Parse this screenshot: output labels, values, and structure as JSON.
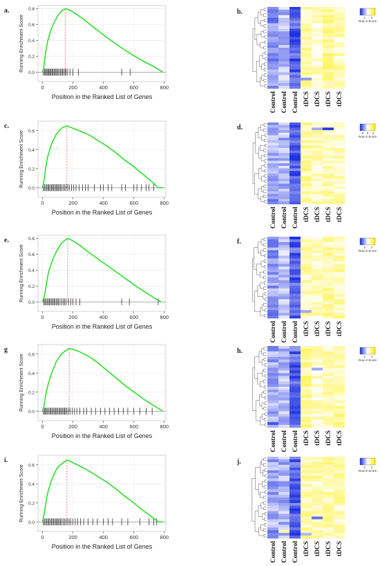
{
  "chart_data": [
    {
      "type": "line",
      "panel_label": "a.",
      "xlabel": "Position in the Ranked List of Genes",
      "ylabel": "Running Enrichment Score",
      "xlim": [
        -30,
        810
      ],
      "ylim": [
        -0.12,
        0.84
      ],
      "x_ticks": [
        "0",
        "200",
        "400",
        "600",
        "800"
      ],
      "y_ticks": [
        "0.0",
        "0.2",
        "0.4",
        "0.6",
        "0.8"
      ],
      "grid": true,
      "peak_marker_x": 150,
      "curve": [
        [
          0,
          0.0
        ],
        [
          8,
          0.06
        ],
        [
          15,
          0.18
        ],
        [
          25,
          0.3
        ],
        [
          35,
          0.4
        ],
        [
          45,
          0.47
        ],
        [
          55,
          0.53
        ],
        [
          70,
          0.6
        ],
        [
          85,
          0.66
        ],
        [
          100,
          0.71
        ],
        [
          115,
          0.75
        ],
        [
          130,
          0.78
        ],
        [
          150,
          0.8
        ],
        [
          170,
          0.79
        ],
        [
          200,
          0.76
        ],
        [
          260,
          0.68
        ],
        [
          340,
          0.56
        ],
        [
          420,
          0.44
        ],
        [
          500,
          0.33
        ],
        [
          580,
          0.23
        ],
        [
          660,
          0.14
        ],
        [
          730,
          0.07
        ],
        [
          790,
          0.0
        ]
      ],
      "hits": [
        5,
        12,
        18,
        25,
        30,
        38,
        42,
        50,
        55,
        62,
        68,
        75,
        82,
        88,
        95,
        102,
        110,
        118,
        125,
        132,
        140,
        148,
        155,
        165,
        180,
        200,
        235,
        520,
        575
      ]
    },
    {
      "type": "heatmap",
      "panel_label": "b.",
      "legend_title": "Row Z-Score",
      "legend_ticks": [
        "-1",
        "1"
      ],
      "columns": [
        "Control",
        "Control",
        "Control",
        "tDCS",
        "tDCS",
        "tDCS",
        "tDCS"
      ],
      "rows": 30,
      "col_means": [
        -0.75,
        -0.45,
        -1.1,
        0.5,
        0.35,
        0.6,
        0.4
      ],
      "special_cells": [
        [
          2,
          3,
          0.2
        ],
        [
          26,
          3,
          -0.7
        ]
      ]
    },
    {
      "type": "line",
      "panel_label": "c.",
      "xlabel": "Position in the Ranked List of Genes",
      "ylabel": "Running Enrichment Score",
      "xlim": [
        -30,
        810
      ],
      "ylim": [
        -0.1,
        0.7
      ],
      "x_ticks": [
        "0",
        "200",
        "400",
        "600",
        "800"
      ],
      "y_ticks": [
        "0.0",
        "0.2",
        "0.4",
        "0.6"
      ],
      "grid": true,
      "peak_marker_x": 160,
      "curve": [
        [
          0,
          0.0
        ],
        [
          10,
          0.08
        ],
        [
          20,
          0.2
        ],
        [
          30,
          0.3
        ],
        [
          40,
          0.36
        ],
        [
          55,
          0.44
        ],
        [
          70,
          0.5
        ],
        [
          90,
          0.56
        ],
        [
          110,
          0.6
        ],
        [
          130,
          0.63
        ],
        [
          160,
          0.65
        ],
        [
          190,
          0.63
        ],
        [
          240,
          0.6
        ],
        [
          300,
          0.56
        ],
        [
          360,
          0.5
        ],
        [
          420,
          0.44
        ],
        [
          480,
          0.37
        ],
        [
          540,
          0.29
        ],
        [
          600,
          0.22
        ],
        [
          660,
          0.14
        ],
        [
          720,
          0.06
        ],
        [
          760,
          0.0
        ],
        [
          790,
          0.0
        ]
      ],
      "hits": [
        5,
        12,
        20,
        28,
        35,
        42,
        50,
        58,
        65,
        72,
        80,
        88,
        95,
        102,
        110,
        118,
        125,
        135,
        145,
        155,
        165,
        175,
        190,
        205,
        220,
        240,
        262,
        282,
        300,
        340,
        380,
        400,
        430,
        455,
        520,
        545,
        600,
        620,
        650,
        680,
        700,
        730
      ]
    },
    {
      "type": "heatmap",
      "panel_label": "d.",
      "legend_title": "Row Z-Score",
      "legend_ticks": [
        "-2",
        "0",
        "2"
      ],
      "columns": [
        "Control",
        "Control",
        "Control",
        "tDCS",
        "tDCS",
        "tDCS",
        "tDCS"
      ],
      "rows": 32,
      "col_means": [
        -0.55,
        -0.5,
        -1.1,
        0.55,
        0.4,
        0.45,
        0.35
      ],
      "special_cells": [
        [
          2,
          4,
          -0.6
        ],
        [
          2,
          5,
          -1.4
        ],
        [
          30,
          0,
          -1.0
        ]
      ]
    },
    {
      "type": "line",
      "panel_label": "e.",
      "xlabel": "Position in the Ranked List of Genes",
      "ylabel": "Running Enrichment Score",
      "xlim": [
        -30,
        810
      ],
      "ylim": [
        -0.12,
        0.84
      ],
      "x_ticks": [
        "0",
        "200",
        "400",
        "600",
        "800"
      ],
      "y_ticks": [
        "0.0",
        "0.2",
        "0.4",
        "0.6",
        "0.8"
      ],
      "grid": true,
      "peak_marker_x": 165,
      "curve": [
        [
          0,
          0.0
        ],
        [
          10,
          0.06
        ],
        [
          20,
          0.16
        ],
        [
          30,
          0.28
        ],
        [
          40,
          0.38
        ],
        [
          55,
          0.47
        ],
        [
          70,
          0.55
        ],
        [
          90,
          0.63
        ],
        [
          110,
          0.7
        ],
        [
          130,
          0.75
        ],
        [
          150,
          0.78
        ],
        [
          165,
          0.8
        ],
        [
          190,
          0.78
        ],
        [
          240,
          0.72
        ],
        [
          300,
          0.63
        ],
        [
          380,
          0.52
        ],
        [
          460,
          0.41
        ],
        [
          540,
          0.3
        ],
        [
          620,
          0.19
        ],
        [
          700,
          0.09
        ],
        [
          760,
          0.02
        ],
        [
          780,
          0.0
        ]
      ],
      "hits": [
        8,
        15,
        22,
        30,
        38,
        45,
        52,
        60,
        68,
        75,
        82,
        90,
        98,
        105,
        115,
        125,
        135,
        145,
        155,
        170,
        185,
        200,
        220,
        245,
        520,
        570,
        760
      ]
    },
    {
      "type": "heatmap",
      "panel_label": "f.",
      "legend_title": "Row Z-Score",
      "legend_ticks": [
        "-1",
        "1"
      ],
      "columns": [
        "Control",
        "Control",
        "Control",
        "tDCS",
        "tDCS",
        "tDCS",
        "tDCS"
      ],
      "rows": 30,
      "col_means": [
        -0.7,
        -0.4,
        -1.1,
        0.5,
        0.35,
        0.6,
        0.45
      ],
      "special_cells": [
        [
          2,
          5,
          0.1
        ],
        [
          27,
          3,
          -0.6
        ]
      ]
    },
    {
      "type": "line",
      "panel_label": "g",
      "xlabel": "Position in the Ranked List of Genes",
      "ylabel": "Running Enrichment Score",
      "xlim": [
        -30,
        810
      ],
      "ylim": [
        -0.1,
        0.7
      ],
      "x_ticks": [
        "0",
        "200",
        "400",
        "600",
        "800"
      ],
      "y_ticks": [
        "0.0",
        "0.2",
        "0.4",
        "0.6"
      ],
      "grid": true,
      "peak_marker_x": 175,
      "curve": [
        [
          0,
          0.0
        ],
        [
          10,
          0.06
        ],
        [
          20,
          0.16
        ],
        [
          30,
          0.24
        ],
        [
          40,
          0.3
        ],
        [
          55,
          0.38
        ],
        [
          70,
          0.44
        ],
        [
          90,
          0.52
        ],
        [
          110,
          0.57
        ],
        [
          130,
          0.61
        ],
        [
          155,
          0.64
        ],
        [
          175,
          0.66
        ],
        [
          200,
          0.65
        ],
        [
          250,
          0.62
        ],
        [
          310,
          0.57
        ],
        [
          370,
          0.5
        ],
        [
          430,
          0.42
        ],
        [
          490,
          0.34
        ],
        [
          550,
          0.26
        ],
        [
          610,
          0.19
        ],
        [
          670,
          0.12
        ],
        [
          730,
          0.06
        ],
        [
          790,
          0.0
        ]
      ],
      "hits": [
        5,
        12,
        18,
        25,
        32,
        40,
        48,
        55,
        62,
        70,
        78,
        85,
        92,
        100,
        108,
        115,
        122,
        130,
        138,
        145,
        152,
        160,
        170,
        180,
        195,
        210,
        225,
        245,
        270,
        290,
        320,
        350,
        380,
        410,
        440,
        470,
        500,
        530,
        560,
        600,
        640,
        680,
        720
      ]
    },
    {
      "type": "heatmap",
      "panel_label": "h.",
      "legend_title": "Row Z-Score",
      "legend_ticks": [
        "-1",
        "1"
      ],
      "columns": [
        "Control",
        "Control",
        "Control",
        "tDCS",
        "tDCS",
        "tDCS",
        "tDCS"
      ],
      "rows": 30,
      "col_means": [
        -0.6,
        -0.45,
        -1.05,
        0.6,
        0.3,
        0.4,
        0.5
      ],
      "special_cells": [
        [
          8,
          4,
          -0.6
        ],
        [
          28,
          0,
          -1.2
        ]
      ]
    },
    {
      "type": "line",
      "panel_label": "i.",
      "xlabel": "Position in the Ranked List of Genes",
      "ylabel": "Running Enrichment Score",
      "xlim": [
        -30,
        810
      ],
      "ylim": [
        -0.1,
        0.7
      ],
      "x_ticks": [
        "0",
        "200",
        "400",
        "600",
        "800"
      ],
      "y_ticks": [
        "0.0",
        "0.2",
        "0.4",
        "0.6"
      ],
      "grid": true,
      "peak_marker_x": 160,
      "curve": [
        [
          0,
          0.0
        ],
        [
          10,
          0.08
        ],
        [
          20,
          0.18
        ],
        [
          30,
          0.28
        ],
        [
          40,
          0.34
        ],
        [
          55,
          0.42
        ],
        [
          70,
          0.48
        ],
        [
          90,
          0.55
        ],
        [
          110,
          0.59
        ],
        [
          135,
          0.62
        ],
        [
          160,
          0.65
        ],
        [
          190,
          0.63
        ],
        [
          240,
          0.59
        ],
        [
          300,
          0.54
        ],
        [
          360,
          0.48
        ],
        [
          420,
          0.42
        ],
        [
          480,
          0.35
        ],
        [
          540,
          0.27
        ],
        [
          600,
          0.2
        ],
        [
          660,
          0.12
        ],
        [
          720,
          0.05
        ],
        [
          760,
          0.0
        ],
        [
          790,
          0.0
        ]
      ],
      "hits": [
        5,
        12,
        20,
        28,
        35,
        42,
        50,
        58,
        65,
        72,
        80,
        88,
        95,
        102,
        110,
        118,
        125,
        135,
        145,
        155,
        165,
        175,
        185,
        200,
        215,
        230,
        250,
        270,
        300,
        330,
        360,
        400,
        430,
        460,
        520,
        560,
        640,
        700,
        730,
        750
      ]
    },
    {
      "type": "heatmap",
      "panel_label": "j.",
      "legend_title": "Row Z-Score",
      "legend_ticks": [
        "-1",
        "1"
      ],
      "columns": [
        "Control",
        "Control",
        "Control",
        "tDCS",
        "tDCS",
        "tDCS",
        "tDCS"
      ],
      "rows": 30,
      "col_means": [
        -0.55,
        -0.5,
        -1.1,
        0.5,
        0.4,
        0.5,
        0.45
      ],
      "special_cells": [
        [
          22,
          4,
          -1.0
        ],
        [
          27,
          0,
          -1.0
        ],
        [
          27,
          1,
          0.6
        ],
        [
          28,
          3,
          -0.5
        ]
      ]
    }
  ]
}
